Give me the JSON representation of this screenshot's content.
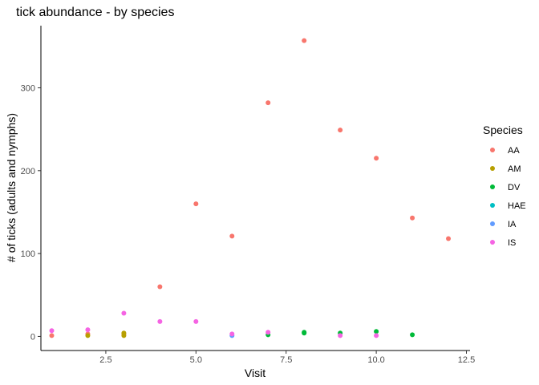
{
  "chart_data": {
    "type": "scatter",
    "title": "tick abundance - by species",
    "xlabel": "Visit",
    "ylabel": "# of ticks (adults and nymphs)",
    "xlim": [
      0.7,
      12.6
    ],
    "ylim": [
      -17,
      375
    ],
    "xticks": [
      2.5,
      5.0,
      7.5,
      10.0,
      12.5
    ],
    "xtick_labels": [
      "2.5",
      "5.0",
      "7.5",
      "10.0",
      "12.5"
    ],
    "yticks": [
      0,
      100,
      200,
      300
    ],
    "ytick_labels": [
      "0",
      "100",
      "200",
      "300"
    ],
    "grid": false,
    "legend": {
      "title": "Species",
      "placement": "right"
    },
    "series": [
      {
        "name": "AA",
        "color": "#F8766D",
        "points": [
          [
            1,
            1
          ],
          [
            2,
            3
          ],
          [
            3,
            3
          ],
          [
            4,
            60
          ],
          [
            5,
            160
          ],
          [
            6,
            121
          ],
          [
            7,
            282
          ],
          [
            8,
            357
          ],
          [
            9,
            249
          ],
          [
            10,
            215
          ],
          [
            11,
            143
          ],
          [
            12,
            118
          ]
        ]
      },
      {
        "name": "AM",
        "color": "#B79F00",
        "points": [
          [
            2,
            1
          ],
          [
            3,
            1
          ],
          [
            3,
            4
          ]
        ]
      },
      {
        "name": "DV",
        "color": "#00BA38",
        "points": [
          [
            7,
            2
          ],
          [
            8,
            4
          ],
          [
            8,
            5
          ],
          [
            9,
            4
          ],
          [
            10,
            6
          ],
          [
            11,
            2
          ]
        ]
      },
      {
        "name": "HAE",
        "color": "#00BFC4",
        "points": []
      },
      {
        "name": "IA",
        "color": "#619CFF",
        "points": [
          [
            6,
            1
          ]
        ]
      },
      {
        "name": "IS",
        "color": "#F564E3",
        "points": [
          [
            1,
            7
          ],
          [
            2,
            8
          ],
          [
            3,
            28
          ],
          [
            4,
            18
          ],
          [
            5,
            18
          ],
          [
            6,
            3
          ],
          [
            7,
            5
          ],
          [
            9,
            1
          ],
          [
            10,
            1
          ]
        ]
      }
    ]
  }
}
